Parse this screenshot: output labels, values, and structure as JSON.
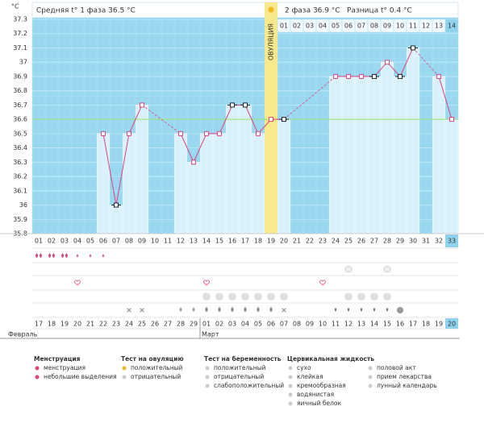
{
  "header": {
    "phase1": "Средняя t° 1 фаза 36.5 °C",
    "phase2": "2 фаза 36.9 °C",
    "difference": "Разница t° 0.4 °C"
  },
  "chart_data": {
    "type": "bar",
    "y_unit": "°C",
    "ovulation_label": "ОВУЛЯЦИЯ",
    "ovulation_category": "19",
    "categories": [
      "01",
      "02",
      "03",
      "04",
      "05",
      "06",
      "07",
      "08",
      "09",
      "10",
      "11",
      "12",
      "13",
      "14",
      "15",
      "16",
      "17",
      "18",
      "19",
      "20",
      "21",
      "22",
      "23",
      "24",
      "25",
      "26",
      "27",
      "28",
      "29",
      "30",
      "31",
      "32",
      "33"
    ],
    "phase2_days": [
      "01",
      "02",
      "03",
      "04",
      "05",
      "06",
      "07",
      "08",
      "09",
      "10",
      "11",
      "12",
      "13",
      "14"
    ],
    "values": [
      null,
      null,
      null,
      null,
      null,
      36.5,
      36.0,
      36.5,
      36.7,
      null,
      null,
      36.5,
      36.3,
      36.5,
      36.5,
      36.7,
      36.7,
      36.5,
      36.6,
      36.6,
      null,
      null,
      null,
      36.9,
      36.9,
      36.9,
      36.9,
      37.0,
      36.9,
      37.1,
      null,
      36.9,
      36.6
    ],
    "point_colors": [
      null,
      null,
      null,
      null,
      null,
      "#e0427a",
      "#222222",
      "#e0427a",
      "#e0427a",
      null,
      null,
      "#e0427a",
      "#e0427a",
      "#e0427a",
      "#e0427a",
      "#222222",
      "#222222",
      "#e0427a",
      "#e0427a",
      "#222222",
      null,
      null,
      null,
      "#e0427a",
      "#e0427a",
      "#e0427a",
      "#222222",
      "#e0427a",
      "#222222",
      "#222222",
      null,
      "#e0427a",
      "#e0427a"
    ],
    "color": "#d9f2fd",
    "line_color": "#e0427a",
    "coverline": 36.6,
    "coverline_color": "#9be06e",
    "ylim": [
      35.8,
      37.3
    ],
    "yticks": [
      35.8,
      35.9,
      36,
      36.1,
      36.2,
      36.3,
      36.4,
      36.5,
      36.6,
      36.7,
      36.8,
      36.9,
      37,
      37.1,
      37.2,
      37.3
    ],
    "grid": true
  },
  "dates": {
    "months": [
      "Февраль",
      "Март"
    ],
    "days": [
      "17",
      "18",
      "19",
      "20",
      "21",
      "22",
      "23",
      "24",
      "25",
      "26",
      "27",
      "28",
      "29",
      "01",
      "02",
      "03",
      "04",
      "05",
      "06",
      "07",
      "08",
      "09",
      "10",
      "11",
      "12",
      "13",
      "14",
      "15",
      "16",
      "17",
      "18",
      "19",
      "20"
    ],
    "colors": [
      "#333",
      "#e0325a",
      "#e0325a",
      "#333",
      "#333",
      "#333",
      "#333",
      "#333",
      "#e0325a",
      "#333",
      "#333",
      "#333",
      "#333",
      "#333",
      "#e0325a",
      "#e0325a",
      "#333",
      "#333",
      "#333",
      "#333",
      "#333",
      "#333",
      "#333",
      "#e0325a",
      "#333",
      "#333",
      "#333",
      "#333",
      "#333",
      "#e0325a",
      "#333",
      "#333",
      "#333"
    ]
  },
  "legend": [
    {
      "title": "Менструация",
      "items": [
        "менструация",
        "небольшие выделения"
      ]
    },
    {
      "title": "Тест на овуляцию",
      "items": [
        "положительный",
        "отрицательный"
      ]
    },
    {
      "title": "Тест на беременность",
      "items": [
        "положительный",
        "отрицательный",
        "слабоположительный"
      ]
    },
    {
      "title": "Цервикальная жидкость",
      "items": [
        "сухо",
        "клейкая",
        "кремообразная",
        "водянистая",
        "яичный белок"
      ]
    },
    {
      "items": [
        "половой акт",
        "прием лекарства",
        "лунный календарь"
      ]
    }
  ]
}
